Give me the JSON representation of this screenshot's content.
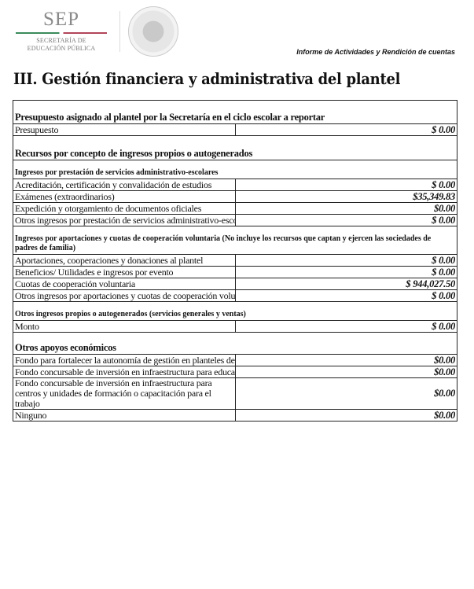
{
  "header": {
    "logo": {
      "name": "SEP",
      "line1": "SECRETARÍA DE",
      "line2": "EDUCACIÓN PÚBLICA",
      "emblem_text": "ESTADOS UNIDOS MEXICANOS"
    },
    "report_title": "Informe de Actividades y Rendición de cuentas"
  },
  "page_title": "III. Gestión financiera y administrativa del plantel",
  "sections": {
    "presupuesto": {
      "title": "Presupuesto asignado al plantel por la Secretaría en el ciclo escolar a reportar",
      "rows": [
        {
          "label": "Presupuesto",
          "value": "$ 0.00"
        }
      ]
    },
    "recursos": {
      "title": "Recursos por concepto de ingresos propios o autogenerados"
    },
    "servicios": {
      "title": "Ingresos por prestación de servicios administrativo-escolares",
      "rows": [
        {
          "label": "Acreditación, certificación y convalidación de estudios",
          "value": "$ 0.00"
        },
        {
          "label": "Exámenes (extraordinarios)",
          "value": "$35,349.83"
        },
        {
          "label": "Expedición y otorgamiento de documentos oficiales",
          "value": "$0.00"
        },
        {
          "label": "Otros ingresos por prestación de servicios administrativo-escolares",
          "value": "$ 0.00"
        }
      ]
    },
    "aportaciones": {
      "title": "Ingresos por aportaciones y cuotas de cooperación voluntaria (No incluye los recursos que captan y ejercen las sociedades de padres de familia)",
      "rows": [
        {
          "label": "Aportaciones, cooperaciones y donaciones al plantel",
          "value": "$ 0.00"
        },
        {
          "label": "Beneficios/ Utilidades e ingresos por evento",
          "value": "$ 0.00"
        },
        {
          "label": "Cuotas de cooperación voluntaria",
          "value": "$ 944,027.50"
        },
        {
          "label": "Otros ingresos por aportaciones y cuotas de cooperación voluntaria",
          "value": "$ 0.00"
        }
      ]
    },
    "otros_ingresos": {
      "title": "Otros ingresos propios o autogenerados (servicios generales y ventas)",
      "rows": [
        {
          "label": "Monto",
          "value": "$ 0.00"
        }
      ]
    },
    "apoyos": {
      "title": "Otros apoyos económicos",
      "rows": [
        {
          "label": "Fondo para fortalecer la autonomía de gestión en planteles de educación media superior",
          "value": "$0.00"
        },
        {
          "label": "Fondo concursable de inversión en infraestructura para educación media superior",
          "value": "$0.00"
        },
        {
          "label": "Fondo concursable de inversión en infraestructura para centros y unidades de formación o capacitación para el trabajo",
          "value": "$0.00"
        },
        {
          "label": "Ninguno",
          "value": "$0.00"
        }
      ]
    }
  }
}
